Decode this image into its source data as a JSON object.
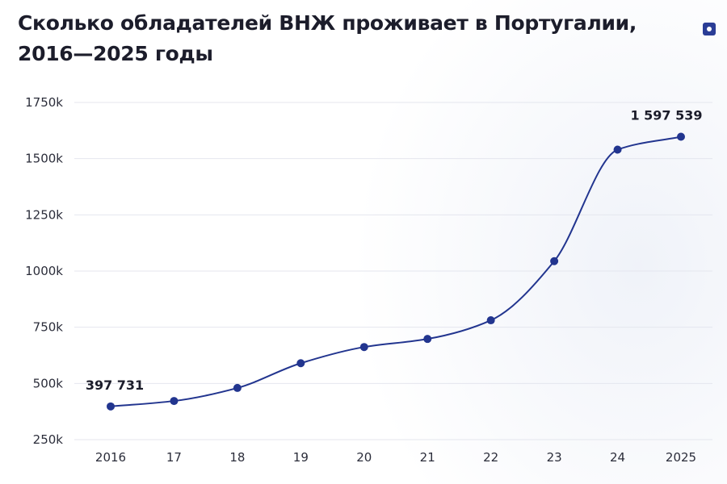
{
  "title": "Сколько обладателей ВНЖ проживает в Португалии, 2016—2025 годы",
  "colors": {
    "line": "#22358f",
    "point": "#22358f",
    "grid": "#e4e6ee",
    "badge": "#2a3d96"
  },
  "chart_data": {
    "type": "line",
    "title": "Сколько обладателей ВНЖ проживает в Португалии, 2016—2025 годы",
    "categories": [
      "2016",
      "17",
      "18",
      "19",
      "20",
      "21",
      "22",
      "23",
      "24",
      "2025"
    ],
    "values": [
      397731,
      422000,
      480000,
      590000,
      662000,
      698000,
      781000,
      1044000,
      1540000,
      1597539
    ],
    "ylim": [
      250000,
      1750000
    ],
    "yticks": [
      250000,
      500000,
      750000,
      1000000,
      1250000,
      1500000,
      1750000
    ],
    "ytick_labels": [
      "250k",
      "500k",
      "750k",
      "1000k",
      "1250k",
      "1500k",
      "1750k"
    ],
    "data_labels": [
      {
        "index": 0,
        "text": "397 731"
      },
      {
        "index": 9,
        "text": "1 597 539"
      }
    ],
    "grid": true,
    "xlabel": "",
    "ylabel": ""
  }
}
